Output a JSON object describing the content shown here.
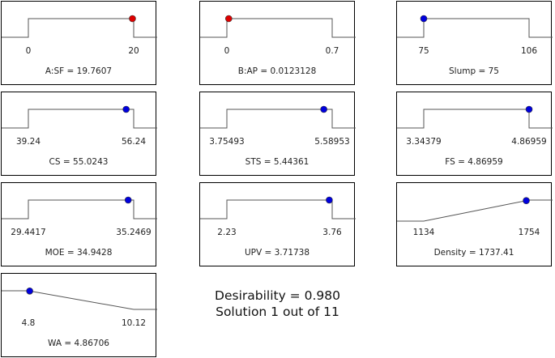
{
  "colors": {
    "target_marker": "#0000dd",
    "range_marker": "#dd0000",
    "line": "#555555"
  },
  "chart_data": [
    {
      "type": "line",
      "title": "A:SF = 19.7607",
      "low_label": "0",
      "high_label": "20",
      "low": 0,
      "high": 20,
      "value": 19.7607,
      "shape": "range",
      "marker": "red"
    },
    {
      "type": "line",
      "title": "B:AP = 0.0123128",
      "low_label": "0",
      "high_label": "0.7",
      "low": 0,
      "high": 0.7,
      "value": 0.0123128,
      "shape": "range",
      "marker": "red"
    },
    {
      "type": "line",
      "title": "Slump = 75",
      "low_label": "75",
      "high_label": "106",
      "low": 75,
      "high": 106,
      "value": 75,
      "shape": "range",
      "marker": "blue"
    },
    {
      "type": "line",
      "title": "CS = 55.0243",
      "low_label": "39.24",
      "high_label": "56.24",
      "low": 39.24,
      "high": 56.24,
      "value": 55.0243,
      "shape": "range",
      "marker": "blue"
    },
    {
      "type": "line",
      "title": "STS = 5.44361",
      "low_label": "3.75493",
      "high_label": "5.58953",
      "low": 3.75493,
      "high": 5.58953,
      "value": 5.44361,
      "shape": "range",
      "marker": "blue"
    },
    {
      "type": "line",
      "title": "FS = 4.86959",
      "low_label": "3.34379",
      "high_label": "4.86959",
      "low": 3.34379,
      "high": 4.86959,
      "value": 4.86959,
      "shape": "range",
      "marker": "blue"
    },
    {
      "type": "line",
      "title": "MOE = 34.9428",
      "low_label": "29.4417",
      "high_label": "35.2469",
      "low": 29.4417,
      "high": 35.2469,
      "value": 34.9428,
      "shape": "range",
      "marker": "blue"
    },
    {
      "type": "line",
      "title": "UPV = 3.71738",
      "low_label": "2.23",
      "high_label": "3.76",
      "low": 2.23,
      "high": 3.76,
      "value": 3.71738,
      "shape": "range",
      "marker": "blue"
    },
    {
      "type": "line",
      "title": "Density = 1737.41",
      "low_label": "1134",
      "high_label": "1754",
      "low": 1134,
      "high": 1754,
      "value": 1737.41,
      "shape": "maximize",
      "marker": "blue"
    },
    {
      "type": "line",
      "title": "WA = 4.86706",
      "low_label": "4.8",
      "high_label": "10.12",
      "low": 4.8,
      "high": 10.12,
      "value": 4.86706,
      "shape": "minimize",
      "marker": "blue"
    }
  ],
  "summary": {
    "desirability": "Desirability = 0.980",
    "solution": "Solution 1 out of 11"
  }
}
